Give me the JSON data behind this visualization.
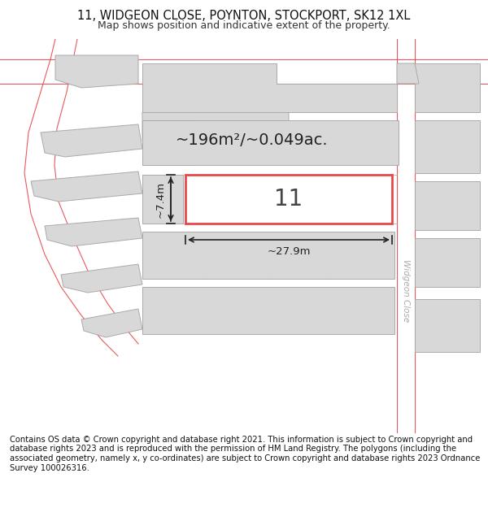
{
  "title_line1": "11, WIDGEON CLOSE, POYNTON, STOCKPORT, SK12 1XL",
  "title_line2": "Map shows position and indicative extent of the property.",
  "footer_text": "Contains OS data © Crown copyright and database right 2021. This information is subject to Crown copyright and database rights 2023 and is reproduced with the permission of HM Land Registry. The polygons (including the associated geometry, namely x, y co-ordinates) are subject to Crown copyright and database rights 2023 Ordnance Survey 100026316.",
  "area_text": "~196m²/~0.049ac.",
  "property_number": "11",
  "dim_width": "~27.9m",
  "dim_height": "~7.4m",
  "bg_color": "#ffffff",
  "map_bg_color": "#ffffff",
  "highlight_color": "#e8474a",
  "building_fill": "#d8d8d8",
  "building_stroke": "#aaaaaa",
  "plot_outline_color": "#e8474a",
  "road_line_color": "#e8474a",
  "road_label": "Widgeon Close",
  "title_fontsize": 10.5,
  "footer_fontsize": 7.2,
  "area_fontsize": 14,
  "number_fontsize": 20
}
